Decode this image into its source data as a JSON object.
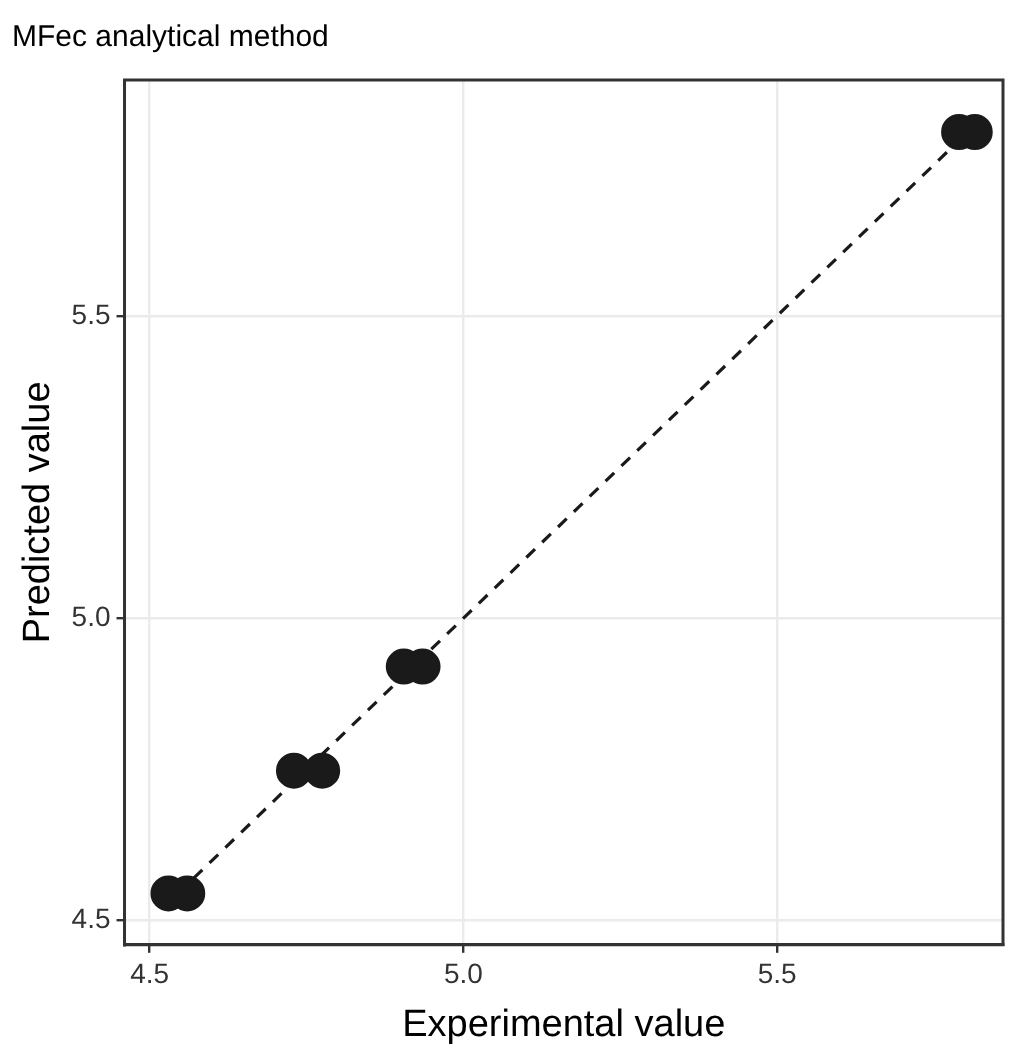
{
  "chart_data": {
    "type": "scatter",
    "title": "MFec analytical method",
    "xlabel": "Experimental value",
    "ylabel": "Predicted value",
    "xlim": [
      4.46,
      5.86
    ],
    "ylim": [
      4.46,
      5.89
    ],
    "xticks": [
      {
        "value": 4.5,
        "label": "4.5"
      },
      {
        "value": 5,
        "label": "5.0"
      },
      {
        "value": 5.5,
        "label": "5.5"
      }
    ],
    "yticks": [
      {
        "value": 4.5,
        "label": "4.5"
      },
      {
        "value": 5,
        "label": "5.0"
      },
      {
        "value": 5.5,
        "label": "5.5"
      }
    ],
    "grid": true,
    "legend": false,
    "marker": "circle",
    "series": [
      {
        "color": "#1a1a1a",
        "x": [
          4.53,
          4.56,
          4.73,
          4.775,
          4.905,
          4.935,
          5.79,
          5.815
        ],
        "values": [
          4.545,
          4.545,
          4.748,
          4.748,
          4.92,
          4.92,
          5.804,
          5.804
        ]
      },
      {
        "type": "line",
        "color": "#1a1a1a",
        "line_style": "dashed",
        "x": [
          4.545,
          5.8
        ],
        "values": [
          4.545,
          5.8
        ]
      }
    ]
  }
}
